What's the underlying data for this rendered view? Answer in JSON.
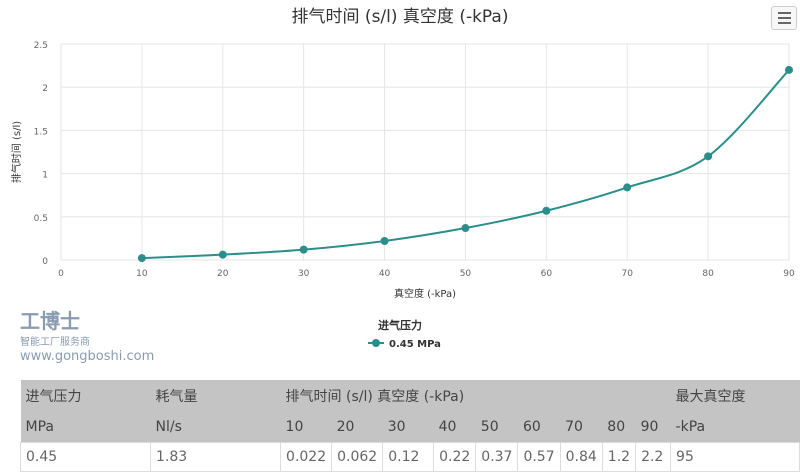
{
  "chart_data": {
    "type": "line",
    "title": "排气时间 (s/l) 真空度 (-kPa)",
    "xlabel": "真空度 (-kPa)",
    "ylabel": "排气时间 (s/l)",
    "xlim": [
      0,
      90
    ],
    "ylim": [
      0,
      2.5
    ],
    "xticks": [
      "0",
      "10",
      "20",
      "30",
      "40",
      "50",
      "60",
      "70",
      "80",
      "90"
    ],
    "yticks": [
      "0",
      "0.5",
      "1",
      "1.5",
      "2",
      "2.5"
    ],
    "legend": {
      "title": "进气压力",
      "placement": "bottom"
    },
    "series": [
      {
        "name": "0.45 MPa",
        "color": "#2a8f8a",
        "x": [
          10,
          20,
          30,
          40,
          50,
          60,
          70,
          80,
          90
        ],
        "y": [
          0.022,
          0.062,
          0.12,
          0.22,
          0.37,
          0.57,
          0.84,
          1.2,
          2.2
        ]
      }
    ],
    "grid": true
  },
  "table": {
    "header1": [
      "进气压力",
      "耗气量",
      "排气时间 (s/l) 真空度 (-kPa)",
      "最大真空度"
    ],
    "header2": [
      "MPa",
      "Nl/s",
      "10",
      "20",
      "30",
      "40",
      "50",
      "60",
      "70",
      "80",
      "90",
      "-kPa"
    ],
    "rows": [
      [
        "0.45",
        "1.83",
        "0.022",
        "0.062",
        "0.12",
        "0.22",
        "0.37",
        "0.57",
        "0.84",
        "1.2",
        "2.2",
        "95"
      ]
    ]
  },
  "watermark": {
    "name": "工博士",
    "tagline": "智能工厂服务商",
    "url": "www.gongboshi.com"
  }
}
